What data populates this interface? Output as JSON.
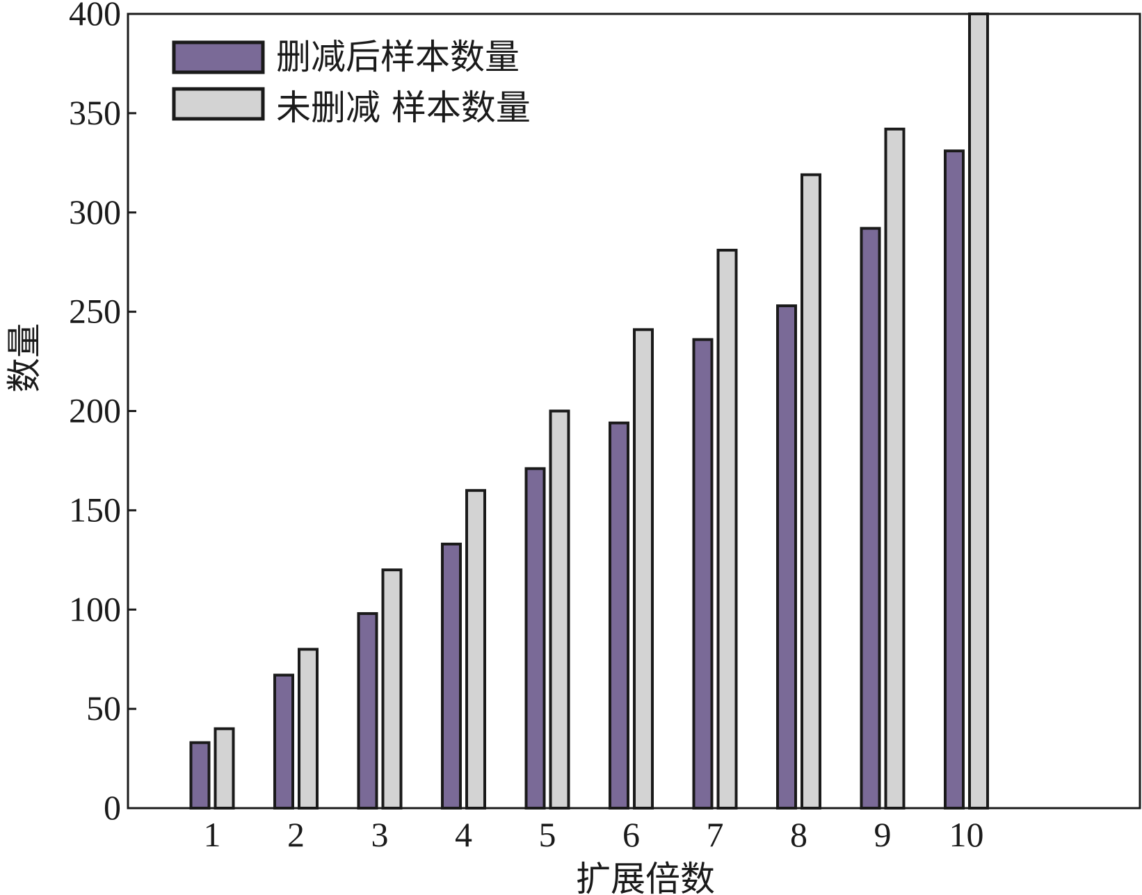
{
  "chart_data": {
    "type": "bar",
    "categories": [
      "1",
      "2",
      "3",
      "4",
      "5",
      "6",
      "7",
      "8",
      "9",
      "10"
    ],
    "series": [
      {
        "name": "删减后样本数量",
        "color": "#7a6a97",
        "values": [
          33,
          67,
          98,
          133,
          171,
          194,
          236,
          253,
          292,
          331
        ]
      },
      {
        "name": "未删减 样本数量",
        "color": "#d3d3d3",
        "values": [
          40,
          80,
          120,
          160,
          200,
          241,
          281,
          319,
          342,
          400
        ]
      }
    ],
    "xlabel": "扩展倍数",
    "ylabel": "数量",
    "ylim": [
      0,
      400
    ],
    "yticks": [
      "0",
      "50",
      "100",
      "150",
      "200",
      "250",
      "300",
      "350",
      "400"
    ],
    "grid": false,
    "legend_position": "top-left"
  }
}
